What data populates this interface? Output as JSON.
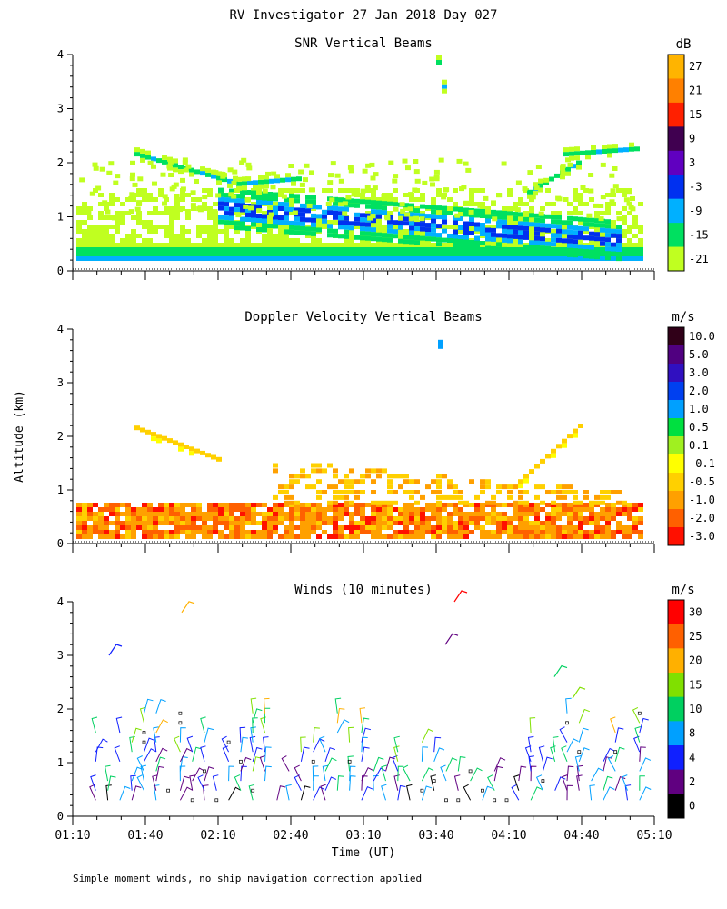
{
  "chart_data": {
    "type": "heatmap",
    "title": "RV Investigator  27 Jan 2018 Day 027",
    "ylabel": "Altitude (km)",
    "xlabel": "Time (UT)",
    "footnote": "Simple moment winds, no ship navigation correction applied",
    "x_ticks": [
      "01:10",
      "01:40",
      "02:10",
      "02:40",
      "03:10",
      "03:40",
      "04:10",
      "04:40",
      "05:10"
    ],
    "y_ticks": [
      "0",
      "1",
      "2",
      "3",
      "4"
    ],
    "ylim": [
      0,
      4
    ],
    "panels": [
      {
        "id": "snr",
        "title": "SNR Vertical Beams",
        "unit": "dB",
        "colorbar_labels": [
          "27",
          "21",
          "15",
          "9",
          "3",
          "-3",
          "-9",
          "-15",
          "-21"
        ],
        "colors": [
          "#ffb400",
          "#ff8000",
          "#ff2000",
          "#400050",
          "#6000c0",
          "#0030f0",
          "#00b0ff",
          "#00e060",
          "#c0ff20"
        ]
      },
      {
        "id": "doppler",
        "title": "Doppler Velocity Vertical Beams",
        "unit": "m/s",
        "colorbar_labels": [
          "10.0",
          "5.0",
          "3.0",
          "2.0",
          "1.0",
          "0.5",
          "0.1",
          "-0.1",
          "-0.5",
          "-1.0",
          "-2.0",
          "-3.0"
        ],
        "colors": [
          "#300018",
          "#500080",
          "#3010c0",
          "#0040f0",
          "#00a0ff",
          "#00e040",
          "#a0f020",
          "#ffff00",
          "#ffd000",
          "#ffa000",
          "#ff6000",
          "#ff1000"
        ]
      },
      {
        "id": "winds",
        "title": "Winds (10 minutes)",
        "unit": "m/s",
        "colorbar_labels": [
          "30",
          "25",
          "20",
          "15",
          "10",
          "8",
          "4",
          "2",
          "0"
        ],
        "colors": [
          "#ff0000",
          "#ff6000",
          "#ffb000",
          "#80e000",
          "#00d060",
          "#00a0ff",
          "#1020ff",
          "#600080",
          "#000000"
        ]
      }
    ]
  }
}
